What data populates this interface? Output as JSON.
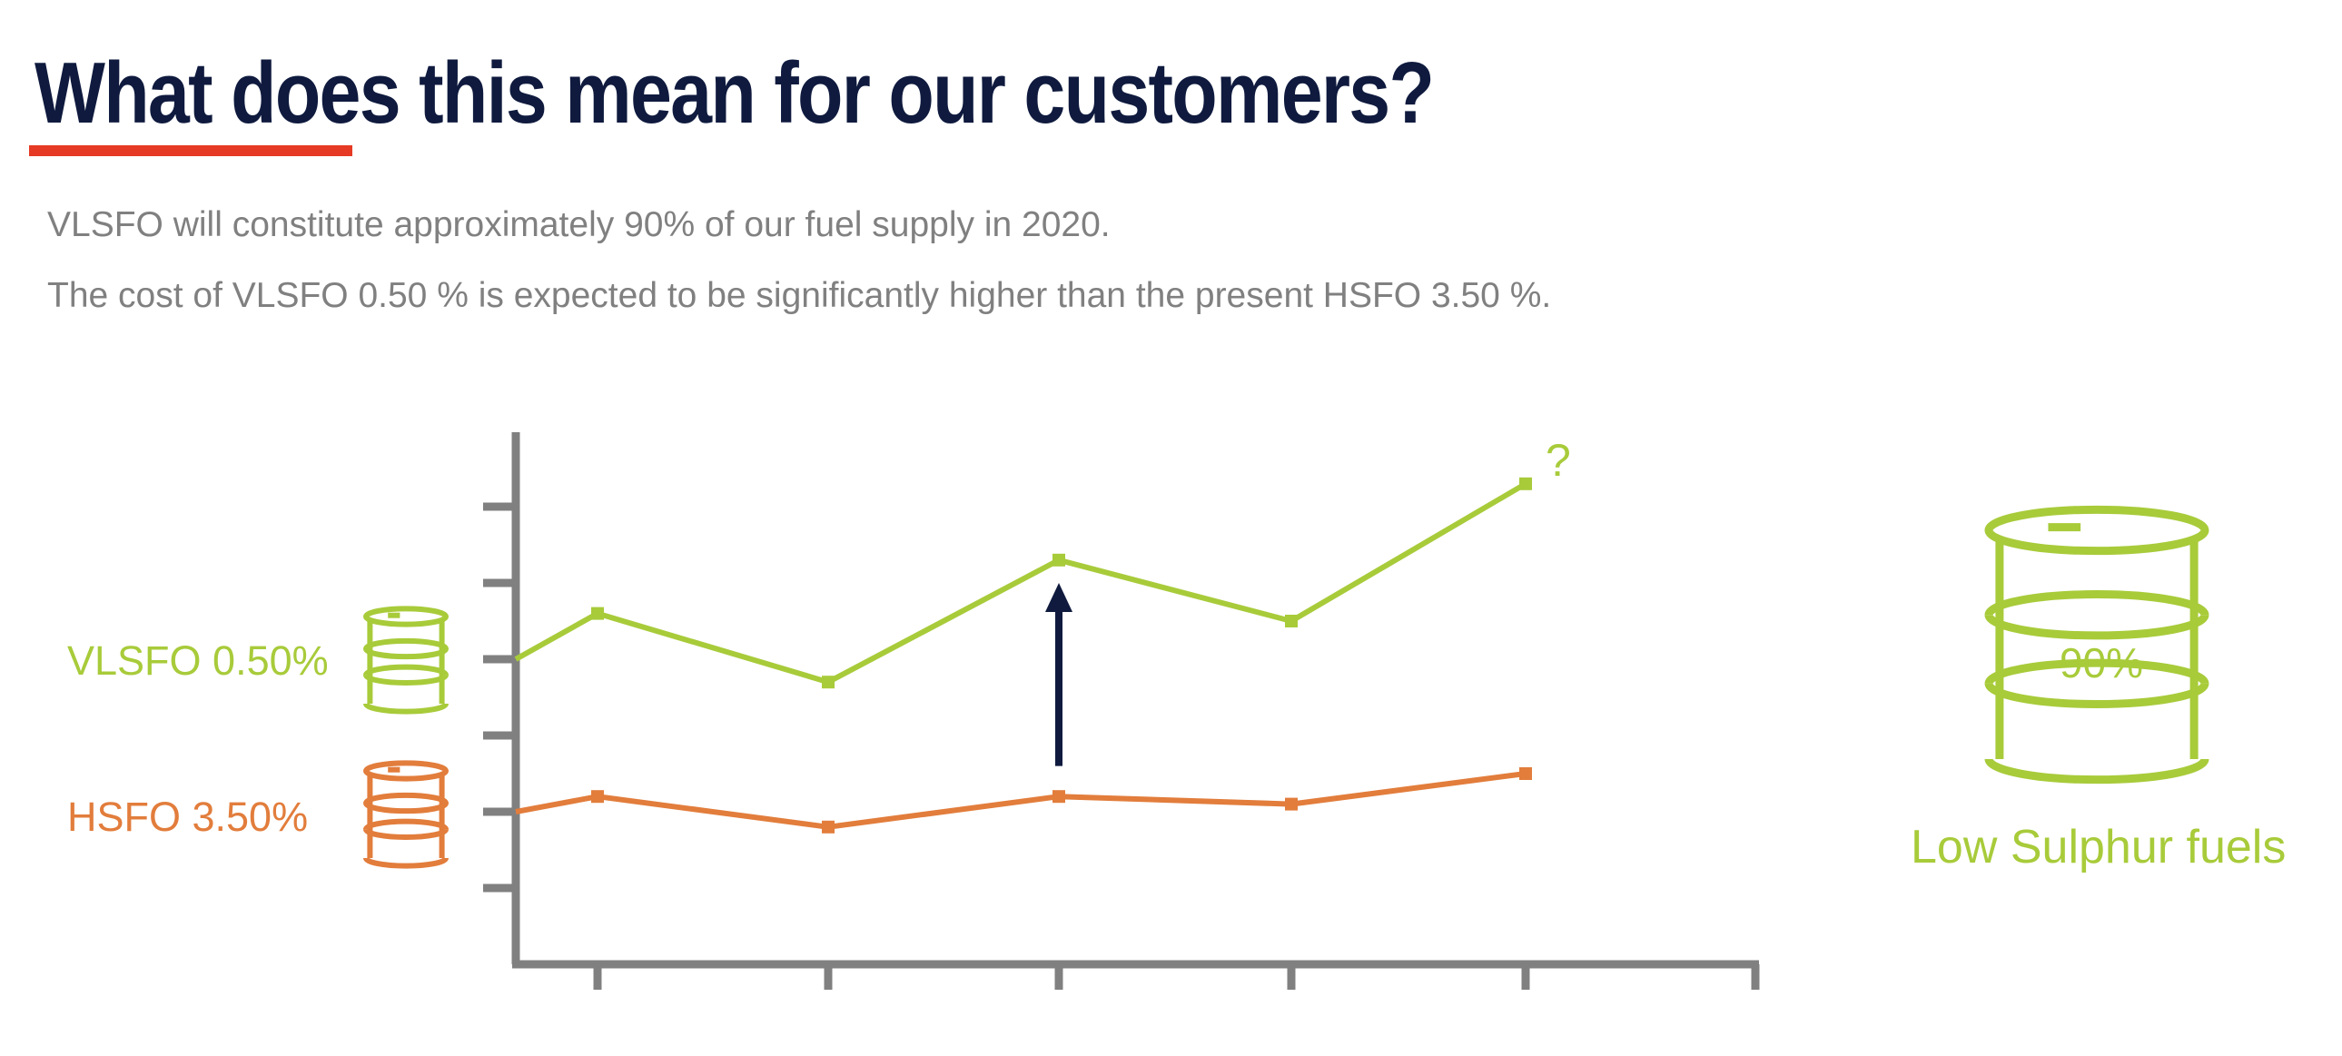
{
  "slide": {
    "title": "What does this mean for our customers?",
    "paragraphs": [
      "VLSFO will constitute approximately 90% of our fuel supply in 2020.",
      "The cost of VLSFO 0.50 % is expected to be significantly higher than the present HSFO 3.50 %."
    ]
  },
  "colors": {
    "title": "#0f1a3e",
    "underline": "#e63a24",
    "body_text": "#808080",
    "vlsfo": "#a8cb3a",
    "hsfo": "#e27d3c",
    "axis": "#808080",
    "arrow": "#0f1a3e"
  },
  "chart_data": {
    "type": "line",
    "x_ticks": 5,
    "series": [
      {
        "name": "VLSFO 0.50%",
        "color": "#a8cb3a",
        "start": 4.0,
        "values": [
          4.6,
          3.7,
          5.3,
          4.5,
          6.3
        ]
      },
      {
        "name": "HSFO 3.50%",
        "color": "#e27d3c",
        "start": 2.0,
        "values": [
          2.2,
          1.8,
          2.2,
          2.1,
          2.5
        ]
      }
    ],
    "ylim": [
      0,
      7
    ],
    "y_ticks": [
      1,
      2,
      3,
      4,
      5,
      6
    ],
    "annotation": "?",
    "arrow": {
      "x_index": 2,
      "from": 2.6,
      "to": 5.0
    }
  },
  "icons": {
    "vlsfo_barrel": "oil-barrel-icon",
    "hsfo_barrel": "oil-barrel-icon",
    "big_barrel": "oil-barrel-icon",
    "arrow": "up-arrow-icon"
  },
  "big_barrel": {
    "percent": "90%",
    "caption": "Low Sulphur fuels"
  }
}
